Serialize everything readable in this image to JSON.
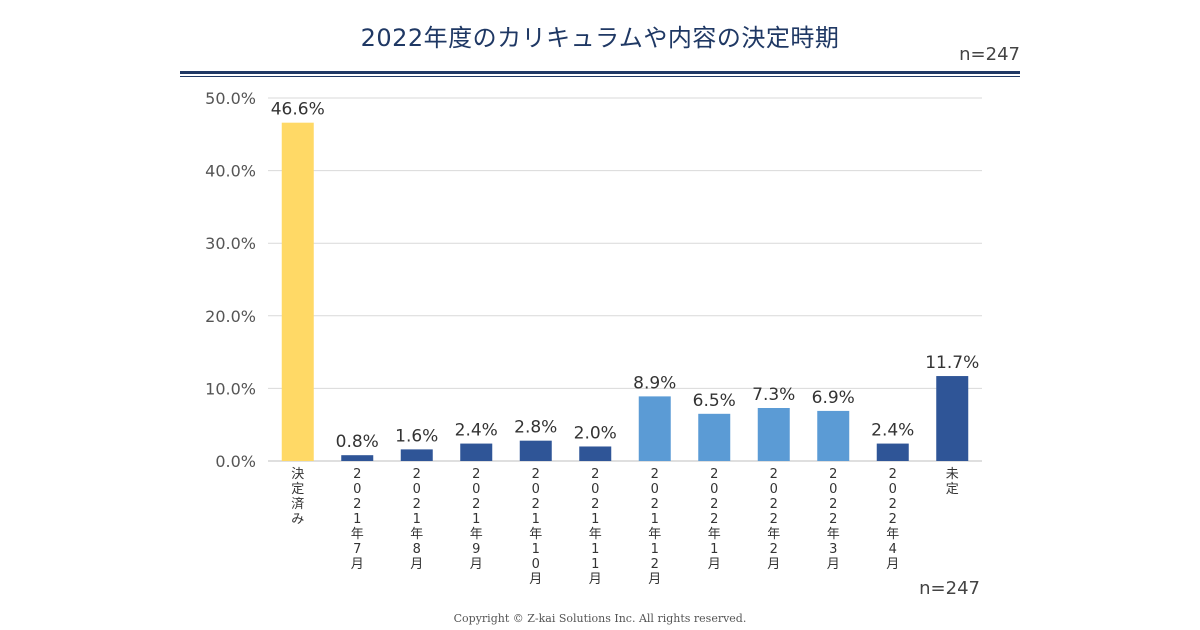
{
  "title": "2022年度のカリキュラムや内容の決定時期",
  "sample_size_top": "n=247",
  "sample_size_bottom": "n=247",
  "copyright": "Copyright © Z-kai Solutions Inc. All rights reserved.",
  "colors": {
    "title": "#1f3864",
    "decided": "#ffd966",
    "dark_blue": "#2f5597",
    "light_blue": "#5b9bd5",
    "grid": "#d9d9d9"
  },
  "chart_data": {
    "type": "bar",
    "categories": [
      "決定済み",
      "2021年7月",
      "2021年8月",
      "2021年9月",
      "2021年10月",
      "2021年11月",
      "2021年12月",
      "2022年1月",
      "2022年2月",
      "2022年3月",
      "2022年4月",
      "未定"
    ],
    "values": [
      46.6,
      0.8,
      1.6,
      2.4,
      2.8,
      2.0,
      8.9,
      6.5,
      7.3,
      6.9,
      2.4,
      11.7
    ],
    "data_labels": [
      "46.6%",
      "0.8%",
      "1.6%",
      "2.4%",
      "2.8%",
      "2.0%",
      "8.9%",
      "6.5%",
      "7.3%",
      "6.9%",
      "2.4%",
      "11.7%"
    ],
    "bar_colors": [
      "#ffd966",
      "#2f5597",
      "#2f5597",
      "#2f5597",
      "#2f5597",
      "#2f5597",
      "#5b9bd5",
      "#5b9bd5",
      "#5b9bd5",
      "#5b9bd5",
      "#2f5597",
      "#2f5597"
    ],
    "y_ticks": [
      "0.0%",
      "10.0%",
      "20.0%",
      "30.0%",
      "40.0%",
      "50.0%"
    ],
    "ylim": [
      0,
      50
    ],
    "grid": true,
    "xlabel": "",
    "ylabel": ""
  }
}
